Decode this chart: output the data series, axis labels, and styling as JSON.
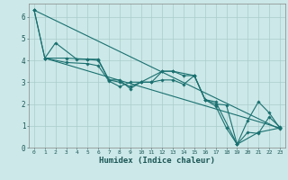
{
  "xlabel": "Humidex (Indice chaleur)",
  "ylabel": "",
  "xlim": [
    -0.5,
    23.5
  ],
  "ylim": [
    0,
    6.6
  ],
  "yticks": [
    0,
    1,
    2,
    3,
    4,
    5,
    6
  ],
  "xticks": [
    0,
    1,
    2,
    3,
    4,
    5,
    6,
    7,
    8,
    9,
    10,
    11,
    12,
    13,
    14,
    15,
    16,
    17,
    18,
    19,
    20,
    21,
    22,
    23
  ],
  "line_color": "#1a7070",
  "bg_color": "#cce8e8",
  "grid_color": "#aacccc",
  "series": [
    {
      "x": [
        0,
        1,
        2,
        4,
        5,
        6,
        7,
        8,
        9,
        10,
        12,
        13,
        15,
        16,
        17,
        19,
        21,
        23
      ],
      "y": [
        6.3,
        4.1,
        4.8,
        4.05,
        4.05,
        4.0,
        3.1,
        3.1,
        2.7,
        3.0,
        3.5,
        3.5,
        3.3,
        2.2,
        2.1,
        0.15,
        0.7,
        0.9
      ]
    },
    {
      "x": [
        1,
        3,
        5,
        6,
        7,
        8,
        9,
        10,
        11,
        12,
        13,
        14,
        15,
        16,
        17,
        18,
        19,
        20,
        21,
        22,
        23
      ],
      "y": [
        4.1,
        4.1,
        4.05,
        4.05,
        3.1,
        3.0,
        2.8,
        3.0,
        3.0,
        3.5,
        3.5,
        3.3,
        3.3,
        2.2,
        2.0,
        1.95,
        0.15,
        1.25,
        2.1,
        1.6,
        0.9
      ]
    },
    {
      "x": [
        0,
        1,
        3,
        5,
        6,
        7,
        8,
        9,
        10,
        11,
        12,
        13,
        14,
        15,
        16,
        17,
        18,
        19,
        20,
        21,
        22,
        23
      ],
      "y": [
        6.3,
        4.1,
        3.9,
        3.85,
        3.75,
        3.05,
        2.8,
        3.0,
        3.0,
        3.0,
        3.1,
        3.1,
        2.9,
        3.3,
        2.2,
        1.9,
        0.9,
        0.15,
        0.7,
        0.65,
        1.4,
        0.95
      ]
    },
    {
      "x": [
        1,
        23
      ],
      "y": [
        4.1,
        0.9
      ]
    },
    {
      "x": [
        0,
        23
      ],
      "y": [
        6.3,
        0.85
      ]
    }
  ]
}
